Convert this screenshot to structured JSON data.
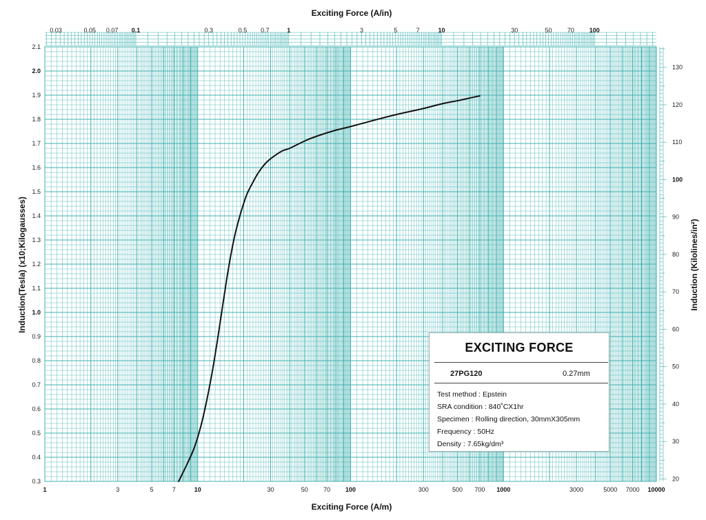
{
  "chart_data": {
    "type": "line",
    "title": "",
    "xlabel": "Exciting Force (A/m)",
    "x2label": "Exciting Force (A/in)",
    "ylabel": "Induction(Tesla) (x10;Kilogausses)",
    "y2label": "Induction (Kilolines/in²)",
    "xscale": "log",
    "xlim": [
      1,
      10000
    ],
    "ylim": [
      0.3,
      2.1
    ],
    "x2lim": [
      0.0254,
      254
    ],
    "y2lim": [
      19.35,
      135.48
    ],
    "grid": true,
    "x_ticks": [
      {
        "v": 1,
        "label": "1",
        "bold": true
      },
      {
        "v": 3,
        "label": "3",
        "bold": false
      },
      {
        "v": 5,
        "label": "5",
        "bold": false
      },
      {
        "v": 7,
        "label": "7",
        "bold": false
      },
      {
        "v": 10,
        "label": "10",
        "bold": true
      },
      {
        "v": 30,
        "label": "30",
        "bold": false
      },
      {
        "v": 50,
        "label": "50",
        "bold": false
      },
      {
        "v": 70,
        "label": "70",
        "bold": false
      },
      {
        "v": 100,
        "label": "100",
        "bold": true
      },
      {
        "v": 300,
        "label": "300",
        "bold": false
      },
      {
        "v": 500,
        "label": "500",
        "bold": false
      },
      {
        "v": 700,
        "label": "700",
        "bold": false
      },
      {
        "v": 1000,
        "label": "1000",
        "bold": true
      },
      {
        "v": 3000,
        "label": "3000",
        "bold": false
      },
      {
        "v": 5000,
        "label": "5000",
        "bold": false
      },
      {
        "v": 7000,
        "label": "7000",
        "bold": false
      },
      {
        "v": 10000,
        "label": "10000",
        "bold": true
      }
    ],
    "x2_ticks": [
      {
        "v": 0.03,
        "label": "0.03",
        "bold": false
      },
      {
        "v": 0.05,
        "label": "0.05",
        "bold": false
      },
      {
        "v": 0.07,
        "label": "0.07",
        "bold": false
      },
      {
        "v": 0.1,
        "label": "0.1",
        "bold": true
      },
      {
        "v": 0.3,
        "label": "0.3",
        "bold": false
      },
      {
        "v": 0.5,
        "label": "0.5",
        "bold": false
      },
      {
        "v": 0.7,
        "label": "0.7",
        "bold": false
      },
      {
        "v": 1,
        "label": "1",
        "bold": true
      },
      {
        "v": 3,
        "label": "3",
        "bold": false
      },
      {
        "v": 5,
        "label": "5",
        "bold": false
      },
      {
        "v": 7,
        "label": "7",
        "bold": false
      },
      {
        "v": 10,
        "label": "10",
        "bold": true
      },
      {
        "v": 30,
        "label": "30",
        "bold": false
      },
      {
        "v": 50,
        "label": "50",
        "bold": false
      },
      {
        "v": 70,
        "label": "70",
        "bold": false
      },
      {
        "v": 100,
        "label": "100",
        "bold": true
      }
    ],
    "y_ticks": [
      {
        "v": 0.3,
        "label": "0.3",
        "bold": false
      },
      {
        "v": 0.4,
        "label": "0.4",
        "bold": false
      },
      {
        "v": 0.5,
        "label": "0.5",
        "bold": false
      },
      {
        "v": 0.6,
        "label": "0.6",
        "bold": false
      },
      {
        "v": 0.7,
        "label": "0.7",
        "bold": false
      },
      {
        "v": 0.8,
        "label": "0.8",
        "bold": false
      },
      {
        "v": 0.9,
        "label": "0.9",
        "bold": false
      },
      {
        "v": 1.0,
        "label": "1.0",
        "bold": true
      },
      {
        "v": 1.1,
        "label": "1.1",
        "bold": false
      },
      {
        "v": 1.2,
        "label": "1.2",
        "bold": false
      },
      {
        "v": 1.3,
        "label": "1.3",
        "bold": false
      },
      {
        "v": 1.4,
        "label": "1.4",
        "bold": false
      },
      {
        "v": 1.5,
        "label": "1.5",
        "bold": false
      },
      {
        "v": 1.6,
        "label": "1.6",
        "bold": false
      },
      {
        "v": 1.7,
        "label": "1.7",
        "bold": false
      },
      {
        "v": 1.8,
        "label": "1.8",
        "bold": false
      },
      {
        "v": 1.9,
        "label": "1.9",
        "bold": false
      },
      {
        "v": 2.0,
        "label": "2.0",
        "bold": true
      },
      {
        "v": 2.1,
        "label": "2.1",
        "bold": false
      }
    ],
    "y2_ticks": [
      {
        "v": 20,
        "label": "20",
        "bold": false
      },
      {
        "v": 30,
        "label": "30",
        "bold": false
      },
      {
        "v": 40,
        "label": "40",
        "bold": false
      },
      {
        "v": 50,
        "label": "50",
        "bold": false
      },
      {
        "v": 60,
        "label": "60",
        "bold": false
      },
      {
        "v": 70,
        "label": "70",
        "bold": false
      },
      {
        "v": 80,
        "label": "80",
        "bold": false
      },
      {
        "v": 90,
        "label": "90",
        "bold": false
      },
      {
        "v": 100,
        "label": "100",
        "bold": true
      },
      {
        "v": 110,
        "label": "110",
        "bold": false
      },
      {
        "v": 120,
        "label": "120",
        "bold": false
      },
      {
        "v": 130,
        "label": "130",
        "bold": false
      }
    ],
    "series": [
      {
        "x": [
          7.5,
          8.5,
          9.5,
          10.5,
          11.5,
          12.5,
          13.5,
          14.5,
          15.5,
          16.5,
          17.5,
          18.5,
          19.5,
          21,
          23,
          25,
          28,
          32,
          36,
          40,
          50,
          60,
          80,
          100,
          150,
          200,
          300,
          400,
          500,
          600,
          700
        ],
        "y": [
          0.3,
          0.37,
          0.44,
          0.53,
          0.64,
          0.76,
          0.89,
          1.02,
          1.14,
          1.24,
          1.32,
          1.38,
          1.43,
          1.49,
          1.54,
          1.58,
          1.62,
          1.65,
          1.67,
          1.68,
          1.71,
          1.73,
          1.755,
          1.77,
          1.8,
          1.82,
          1.845,
          1.865,
          1.877,
          1.888,
          1.897
        ]
      }
    ]
  },
  "colors": {
    "grid": "#3fb0b0",
    "curve": "#111111",
    "background": "#ffffff"
  },
  "legend": {
    "title": "EXCITING FORCE",
    "grade": "27PG120",
    "thickness": "0.27mm",
    "notes": [
      "Test method : Epstein",
      "SRA condition : 840˚CX1hr",
      "Specimen : Rolling direction, 30mmX305mm",
      "Frequency : 50Hz",
      "Density : 7.65kg/dm³"
    ]
  }
}
